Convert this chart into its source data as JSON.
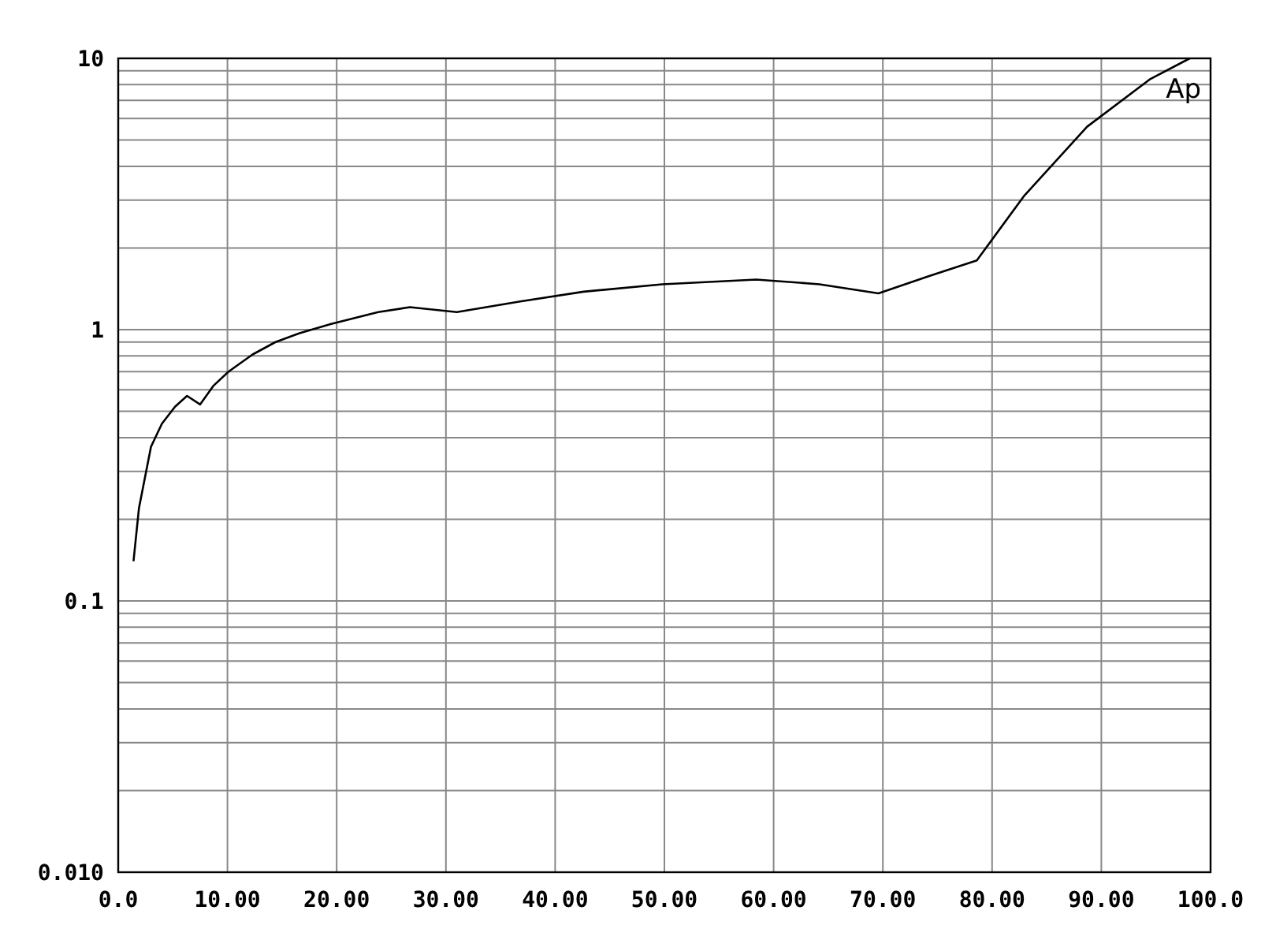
{
  "chart_data": {
    "type": "line",
    "log": "y",
    "grid": true,
    "marker": "none",
    "line_style": "solid",
    "xlim": [
      0,
      100
    ],
    "xticks": [
      {
        "value": 0,
        "label": "0.0"
      },
      {
        "value": 10,
        "label": "10.00"
      },
      {
        "value": 20,
        "label": "20.00"
      },
      {
        "value": 30,
        "label": "30.00"
      },
      {
        "value": 40,
        "label": "40.00"
      },
      {
        "value": 50,
        "label": "50.00"
      },
      {
        "value": 60,
        "label": "60.00"
      },
      {
        "value": 70,
        "label": "70.00"
      },
      {
        "value": 80,
        "label": "80.00"
      },
      {
        "value": 90,
        "label": "90.00"
      },
      {
        "value": 100,
        "label": "100.0"
      }
    ],
    "ylim": [
      0.01,
      10
    ],
    "yticks": [
      {
        "value": 0.01,
        "label": "0.010"
      },
      {
        "value": 0.02,
        "label": null
      },
      {
        "value": 0.03,
        "label": null
      },
      {
        "value": 0.04,
        "label": null
      },
      {
        "value": 0.05,
        "label": null
      },
      {
        "value": 0.06,
        "label": null
      },
      {
        "value": 0.07,
        "label": null
      },
      {
        "value": 0.08,
        "label": null
      },
      {
        "value": 0.09,
        "label": null
      },
      {
        "value": 0.1,
        "label": "0.1"
      },
      {
        "value": 0.2,
        "label": null
      },
      {
        "value": 0.3,
        "label": null
      },
      {
        "value": 0.4,
        "label": null
      },
      {
        "value": 0.5,
        "label": null
      },
      {
        "value": 0.6,
        "label": null
      },
      {
        "value": 0.7,
        "label": null
      },
      {
        "value": 0.8,
        "label": null
      },
      {
        "value": 0.9,
        "label": null
      },
      {
        "value": 1,
        "label": "1"
      },
      {
        "value": 2,
        "label": null
      },
      {
        "value": 3,
        "label": null
      },
      {
        "value": 4,
        "label": null
      },
      {
        "value": 5,
        "label": null
      },
      {
        "value": 6,
        "label": null
      },
      {
        "value": 7,
        "label": null
      },
      {
        "value": 8,
        "label": null
      },
      {
        "value": 9,
        "label": null
      },
      {
        "value": 10,
        "label": "10"
      }
    ],
    "x": [
      1.4,
      1.9,
      3.0,
      4.0,
      5.2,
      6.3,
      7.5,
      8.7,
      10.1,
      12.3,
      14.4,
      16.6,
      19.5,
      23.8,
      26.7,
      31.0,
      36.8,
      42.6,
      49.8,
      58.4,
      64.2,
      69.6,
      74.3,
      78.6,
      82.9,
      88.7,
      94.5,
      98.1
    ],
    "series": [
      {
        "color": "#000000",
        "values": [
          0.14,
          0.22,
          0.37,
          0.45,
          0.52,
          0.57,
          0.53,
          0.62,
          0.7,
          0.81,
          0.9,
          0.97,
          1.05,
          1.16,
          1.21,
          1.16,
          1.27,
          1.38,
          1.47,
          1.53,
          1.47,
          1.36,
          1.58,
          1.8,
          3.1,
          5.6,
          8.4,
          10
        ]
      }
    ],
    "annotations": [
      "Ap"
    ]
  }
}
